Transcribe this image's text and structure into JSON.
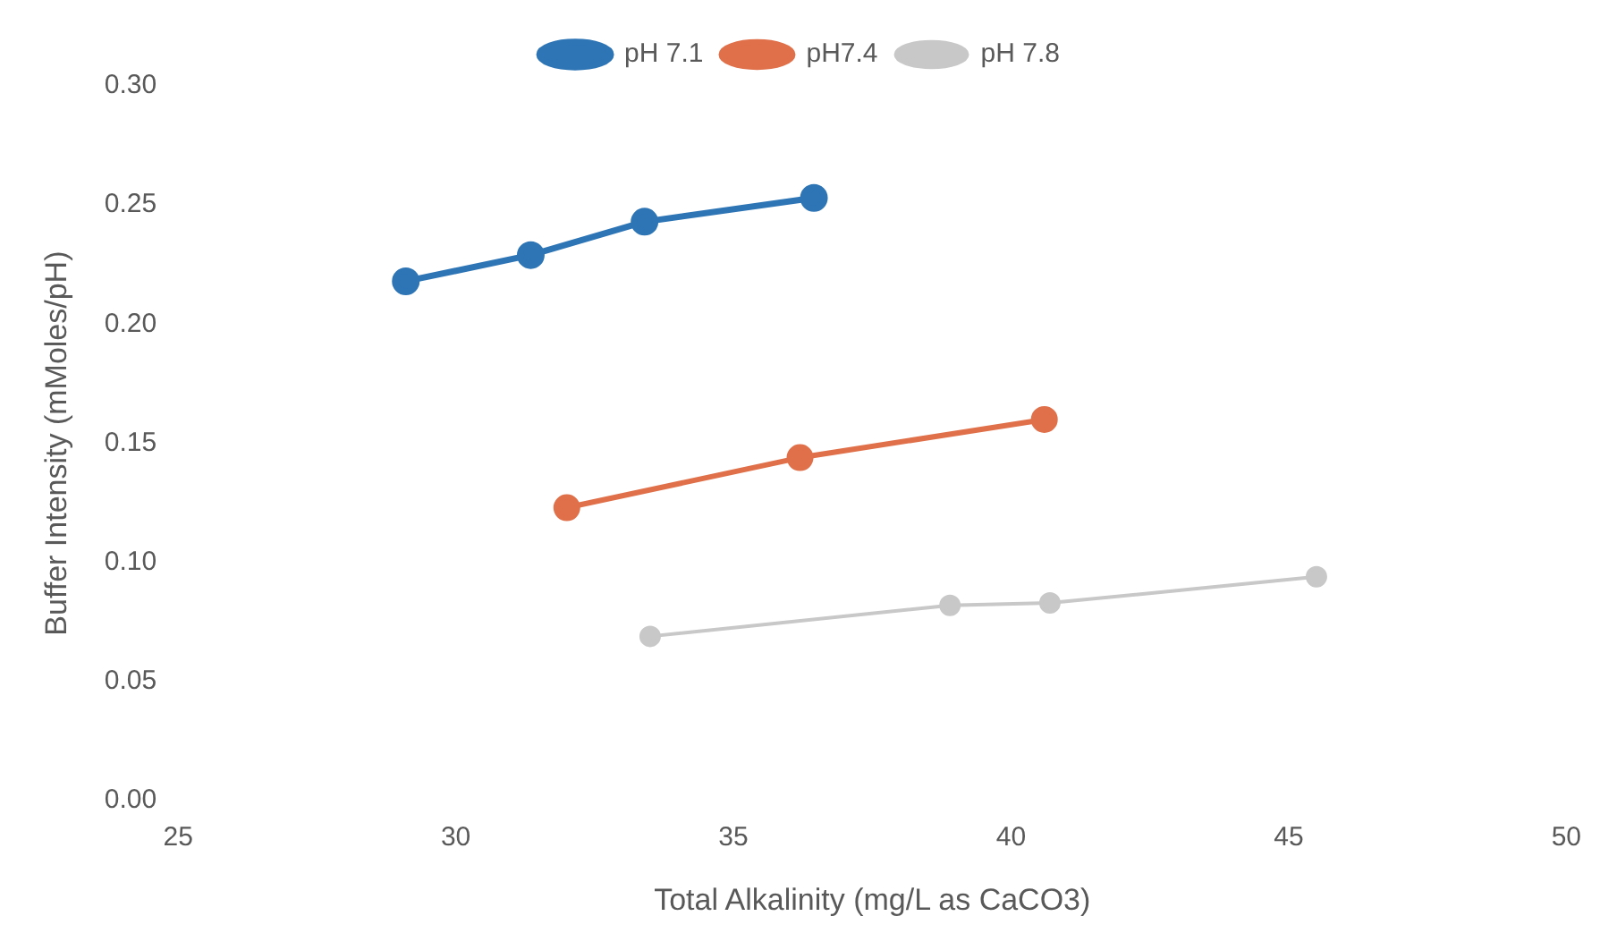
{
  "chart_data": {
    "type": "line",
    "xlabel": "Total Alkalinity (mg/L as CaCO3)",
    "ylabel": "Buffer Intensity (mMoles/pH)",
    "xlim": [
      25,
      50
    ],
    "xticks": [
      25,
      30,
      35,
      40,
      45,
      50
    ],
    "ylim": [
      0,
      0.3
    ],
    "yticks": [
      {
        "value": 0,
        "label": "0.00"
      },
      {
        "value": 0.05,
        "label": "0.05"
      },
      {
        "value": 0.1,
        "label": "0.10"
      },
      {
        "value": 0.15,
        "label": "0.15"
      },
      {
        "value": 0.2,
        "label": "0.20"
      },
      {
        "value": 0.25,
        "label": "0.25"
      },
      {
        "value": 0.3,
        "label": "0.30"
      }
    ],
    "grid": false,
    "legend": "top",
    "marker": "circle",
    "line_style": "solid",
    "series": [
      {
        "name": "pH 7.1",
        "color": "#2e75b6",
        "x": [
          29.1,
          31.35,
          33.4,
          36.45
        ],
        "values": [
          0.218,
          0.229,
          0.243,
          0.253
        ]
      },
      {
        "name": "pH7.4",
        "color": "#e0704a",
        "x": [
          32.0,
          36.2,
          40.6
        ],
        "values": [
          0.123,
          0.144,
          0.16
        ]
      },
      {
        "name": "pH 7.8",
        "color": "#c8c8c8",
        "x": [
          33.5,
          38.9,
          40.7,
          45.5
        ],
        "values": [
          0.069,
          0.082,
          0.083,
          0.094
        ]
      }
    ]
  }
}
